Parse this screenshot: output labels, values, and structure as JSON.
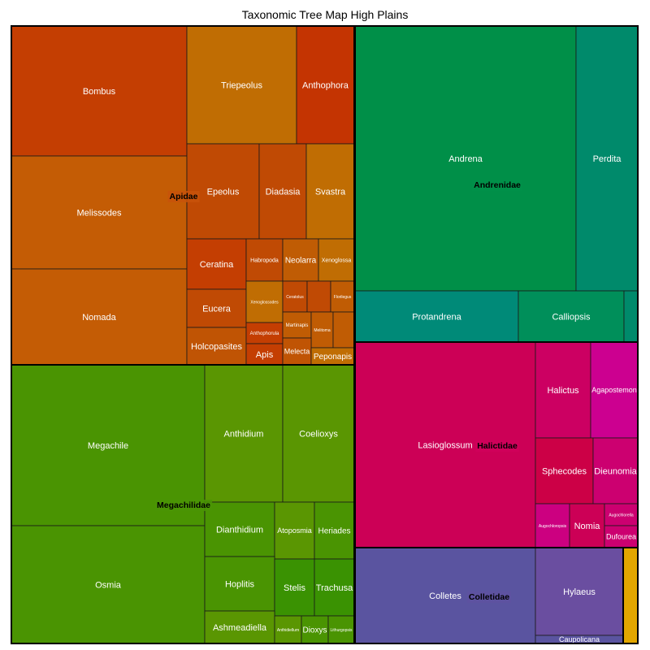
{
  "chart_data": {
    "type": "treemap",
    "title": "Taxonomic Tree Map High Plains",
    "families": [
      {
        "name": "Apidae",
        "color": "#c8520a",
        "genera": [
          {
            "name": "Bombus",
            "color": "#c43e02"
          },
          {
            "name": "Melissodes",
            "color": "#c45c05"
          },
          {
            "name": "Nomada",
            "color": "#c45c05"
          },
          {
            "name": "Triepeolus",
            "color": "#c06d03"
          },
          {
            "name": "Anthophora",
            "color": "#c43402"
          },
          {
            "name": "Epeolus",
            "color": "#c04a04"
          },
          {
            "name": "Diadasia",
            "color": "#c04a04"
          },
          {
            "name": "Svastra",
            "color": "#c06d03"
          },
          {
            "name": "Ceratina",
            "color": "#c43e02"
          },
          {
            "name": "Habropoda",
            "color": "#c04a04"
          },
          {
            "name": "Neolarra",
            "color": "#c05c04"
          },
          {
            "name": "Xenoglossa",
            "color": "#c06d03"
          },
          {
            "name": "Eucera",
            "color": "#c04a04"
          },
          {
            "name": "Xenoglossodes",
            "color": "#c06d03"
          },
          {
            "name": "Ceratolus",
            "color": "#c04a04"
          },
          {
            "name": "",
            "color": "#c04a04"
          },
          {
            "name": "Florilegus",
            "color": "#c05c04"
          },
          {
            "name": "Holcopasites",
            "color": "#c05404"
          },
          {
            "name": "Anthophorula",
            "color": "#c43e02"
          },
          {
            "name": "Martinapis",
            "color": "#c05c04"
          },
          {
            "name": "Melitoma",
            "color": "#c05c04"
          },
          {
            "name": "",
            "color": "#c05c04"
          },
          {
            "name": "Apis",
            "color": "#c43e02"
          },
          {
            "name": "Melecta",
            "color": "#c05404"
          },
          {
            "name": "Peponapis",
            "color": "#c06d03"
          }
        ]
      },
      {
        "name": "Andrenidae",
        "color": "#00904a",
        "genera": [
          {
            "name": "Andrena",
            "color": "#008f48"
          },
          {
            "name": "Perdita",
            "color": "#008a6b"
          },
          {
            "name": "Protandrena",
            "color": "#008a78"
          },
          {
            "name": "Calliopsis",
            "color": "#008f5a"
          },
          {
            "name": "",
            "color": "#008a6b"
          }
        ]
      },
      {
        "name": "Megachilidae",
        "color": "#4a9405",
        "genera": [
          {
            "name": "Megachile",
            "color": "#4a9402"
          },
          {
            "name": "Osmia",
            "color": "#4a9402"
          },
          {
            "name": "Anthidium",
            "color": "#5a9602"
          },
          {
            "name": "Coelioxys",
            "color": "#5a9602"
          },
          {
            "name": "Dianthidium",
            "color": "#4a9402"
          },
          {
            "name": "Atoposmia",
            "color": "#5a9602"
          },
          {
            "name": "Heriades",
            "color": "#4a9402"
          },
          {
            "name": "Hoplitis",
            "color": "#4a9402"
          },
          {
            "name": "Stelis",
            "color": "#3a9202"
          },
          {
            "name": "Trachusa",
            "color": "#3a9202"
          },
          {
            "name": "Ashmeadiella",
            "color": "#5a9602"
          },
          {
            "name": "Anthidiellum",
            "color": "#5a9602"
          },
          {
            "name": "Dioxys",
            "color": "#4a9402"
          },
          {
            "name": "Lithurgopsis",
            "color": "#4a9402"
          }
        ]
      },
      {
        "name": "Halictidae",
        "color": "#d0005a",
        "genera": [
          {
            "name": "Lasioglossum",
            "color": "#cc0056"
          },
          {
            "name": "Halictus",
            "color": "#cc0062"
          },
          {
            "name": "Agapostemon",
            "color": "#cc0090"
          },
          {
            "name": "Sphecodes",
            "color": "#cc0046"
          },
          {
            "name": "Dieunomia",
            "color": "#cc0070"
          },
          {
            "name": "Augochloropsis",
            "color": "#cc0080"
          },
          {
            "name": "Nomia",
            "color": "#cc0056"
          },
          {
            "name": "Augochlorella",
            "color": "#cc0070"
          },
          {
            "name": "Dufourea",
            "color": "#cc0070"
          }
        ]
      },
      {
        "name": "Colletidae",
        "color": "#5e52a0",
        "genera": [
          {
            "name": "Colletes",
            "color": "#5a54a0"
          },
          {
            "name": "Hylaeus",
            "color": "#6a4ea0"
          },
          {
            "name": "Caupolicana",
            "color": "#5a54a0"
          }
        ]
      },
      {
        "name": "",
        "color": "#e5a800",
        "genera": [
          {
            "name": "",
            "color": "#e2a600"
          }
        ]
      }
    ]
  }
}
